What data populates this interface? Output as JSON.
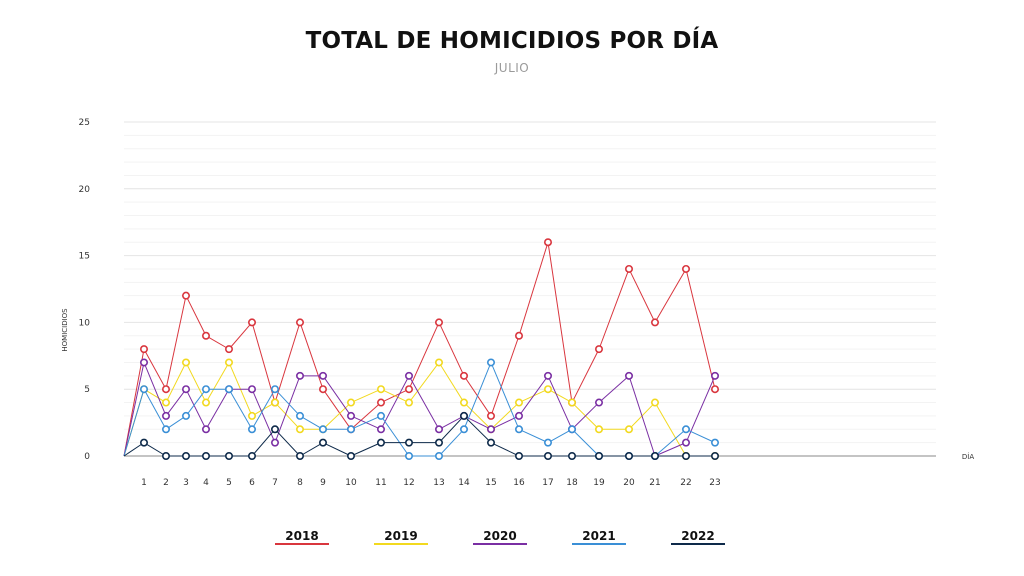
{
  "chart_data": {
    "type": "line",
    "title": "TOTAL DE HOMICIDIOS POR DÍA",
    "subtitle": "JULIO",
    "xlabel": "DÍA",
    "ylabel": "HOMICIDIOS",
    "x": [
      1,
      2,
      3,
      4,
      5,
      6,
      7,
      8,
      9,
      10,
      11,
      12,
      13,
      14,
      15,
      16,
      17,
      18,
      19,
      20,
      21,
      22,
      23
    ],
    "ylim": [
      0,
      25
    ],
    "yticks": [
      0,
      5,
      10,
      15,
      20,
      25
    ],
    "grid": true,
    "legend_position": "bottom",
    "series": [
      {
        "name": "2018",
        "color": "#d9363e",
        "values": [
          8,
          5,
          12,
          9,
          8,
          10,
          4,
          10,
          5,
          2,
          4,
          5,
          10,
          6,
          3,
          9,
          16,
          4,
          8,
          14,
          10,
          14,
          5
        ]
      },
      {
        "name": "2019",
        "color": "#f2d91f",
        "values": [
          5,
          4,
          7,
          4,
          7,
          3,
          4,
          2,
          2,
          4,
          5,
          4,
          7,
          4,
          2,
          4,
          5,
          4,
          2,
          2,
          4,
          0,
          0
        ]
      },
      {
        "name": "2020",
        "color": "#7a2fa3",
        "values": [
          7,
          3,
          5,
          2,
          5,
          5,
          1,
          6,
          6,
          3,
          2,
          6,
          2,
          3,
          2,
          3,
          6,
          2,
          4,
          6,
          0,
          1,
          6
        ]
      },
      {
        "name": "2021",
        "color": "#3a8fd6",
        "values": [
          5,
          2,
          3,
          5,
          5,
          2,
          5,
          3,
          2,
          2,
          3,
          0,
          0,
          2,
          7,
          2,
          1,
          2,
          0,
          0,
          0,
          2,
          1
        ]
      },
      {
        "name": "2022",
        "color": "#0e2a4a",
        "values": [
          1,
          0,
          0,
          0,
          0,
          0,
          2,
          0,
          1,
          0,
          1,
          1,
          1,
          3,
          1,
          0,
          0,
          0,
          0,
          0,
          0,
          0,
          0
        ]
      }
    ]
  }
}
